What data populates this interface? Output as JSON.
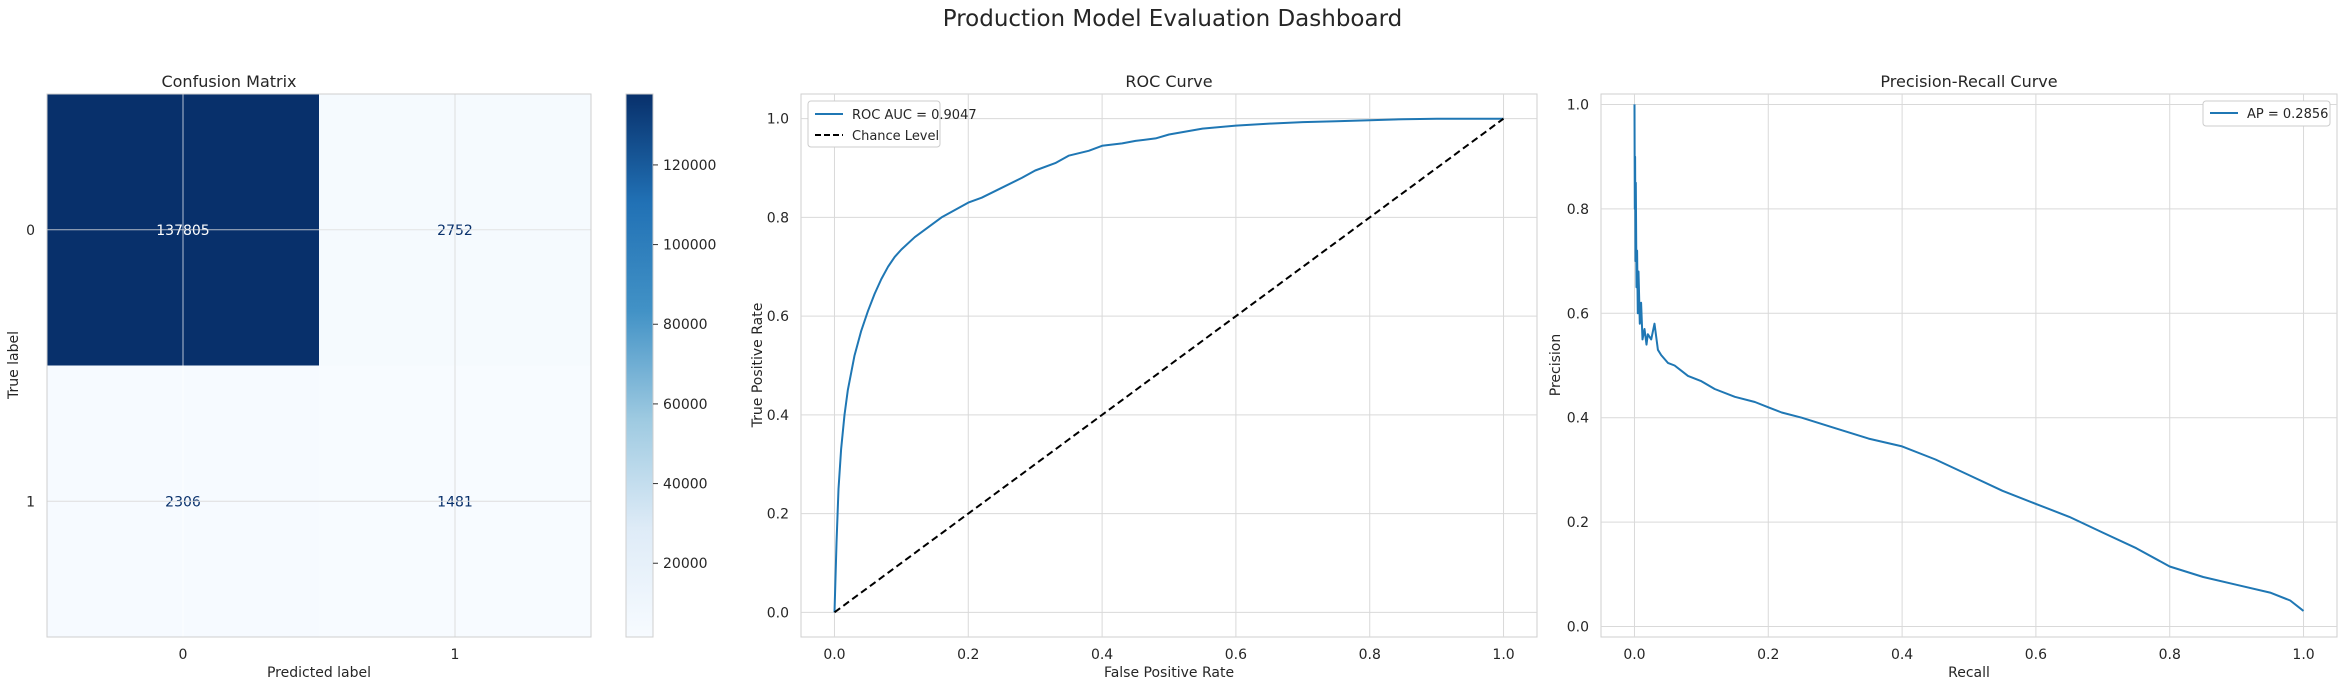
{
  "suptitle": "Production Model Evaluation Dashboard",
  "colors": {
    "line_blue": "#1f77b4",
    "chance_black": "#000000",
    "grid": "#d9d9d9",
    "cm_dark": "#08306b",
    "cm_light": "#f7fbff"
  },
  "chart_data": [
    {
      "type": "heatmap",
      "title": "Confusion Matrix",
      "xlabel": "Predicted label",
      "ylabel": "True label",
      "x_ticks": [
        "0",
        "1"
      ],
      "y_ticks": [
        "0",
        "1"
      ],
      "matrix": [
        [
          137805,
          2752
        ],
        [
          2306,
          1481
        ]
      ],
      "cell_labels": [
        [
          "137805",
          "2752"
        ],
        [
          "2306",
          "1481"
        ]
      ],
      "colorbar": {
        "ticks": [
          "20000",
          "40000",
          "60000",
          "80000",
          "100000",
          "120000"
        ],
        "range": [
          1481,
          137805
        ]
      }
    },
    {
      "type": "line",
      "title": "ROC Curve",
      "xlabel": "False Positive Rate",
      "ylabel": "True Positive Rate",
      "xlim": [
        -0.05,
        1.05
      ],
      "ylim": [
        -0.05,
        1.05
      ],
      "x_ticks": [
        "0.0",
        "0.2",
        "0.4",
        "0.6",
        "0.8",
        "1.0"
      ],
      "y_ticks": [
        "0.0",
        "0.2",
        "0.4",
        "0.6",
        "0.8",
        "1.0"
      ],
      "legend_position": "top-left",
      "grid": true,
      "series": [
        {
          "name": "ROC AUC = 0.9047",
          "style": "solid",
          "x": [
            0,
            0.003,
            0.006,
            0.01,
            0.015,
            0.02,
            0.03,
            0.04,
            0.05,
            0.06,
            0.07,
            0.08,
            0.09,
            0.1,
            0.12,
            0.14,
            0.16,
            0.18,
            0.2,
            0.22,
            0.25,
            0.28,
            0.3,
            0.33,
            0.35,
            0.38,
            0.4,
            0.43,
            0.45,
            0.48,
            0.5,
            0.55,
            0.6,
            0.65,
            0.7,
            0.75,
            0.8,
            0.85,
            0.9,
            0.95,
            1.0
          ],
          "y": [
            0,
            0.14,
            0.25,
            0.33,
            0.4,
            0.45,
            0.52,
            0.57,
            0.61,
            0.645,
            0.675,
            0.7,
            0.72,
            0.735,
            0.76,
            0.78,
            0.8,
            0.815,
            0.83,
            0.84,
            0.86,
            0.88,
            0.895,
            0.91,
            0.925,
            0.935,
            0.945,
            0.95,
            0.955,
            0.96,
            0.968,
            0.98,
            0.986,
            0.99,
            0.993,
            0.995,
            0.997,
            0.999,
            1.0,
            1.0,
            1.0
          ]
        },
        {
          "name": "Chance Level",
          "style": "dashed",
          "x": [
            0,
            1
          ],
          "y": [
            0,
            1
          ]
        }
      ]
    },
    {
      "type": "line",
      "title": "Precision-Recall Curve",
      "xlabel": "Recall",
      "ylabel": "Precision",
      "xlim": [
        -0.05,
        1.05
      ],
      "ylim": [
        -0.02,
        1.02
      ],
      "x_ticks": [
        "0.0",
        "0.2",
        "0.4",
        "0.6",
        "0.8",
        "1.0"
      ],
      "y_ticks": [
        "0.0",
        "0.2",
        "0.4",
        "0.6",
        "0.8",
        "1.0"
      ],
      "legend_position": "top-right",
      "grid": true,
      "series": [
        {
          "name": "AP = 0.2856",
          "style": "solid",
          "x": [
            0.0,
            0.0005,
            0.001,
            0.0015,
            0.002,
            0.003,
            0.004,
            0.005,
            0.006,
            0.008,
            0.01,
            0.012,
            0.015,
            0.018,
            0.02,
            0.025,
            0.03,
            0.035,
            0.04,
            0.05,
            0.06,
            0.07,
            0.08,
            0.1,
            0.12,
            0.15,
            0.18,
            0.2,
            0.22,
            0.25,
            0.3,
            0.35,
            0.4,
            0.45,
            0.5,
            0.55,
            0.6,
            0.65,
            0.7,
            0.75,
            0.8,
            0.85,
            0.9,
            0.95,
            0.98,
            1.0
          ],
          "y": [
            1.0,
            0.8,
            0.9,
            0.7,
            0.85,
            0.65,
            0.72,
            0.6,
            0.68,
            0.58,
            0.62,
            0.55,
            0.57,
            0.54,
            0.56,
            0.55,
            0.58,
            0.53,
            0.52,
            0.505,
            0.5,
            0.49,
            0.48,
            0.47,
            0.455,
            0.44,
            0.43,
            0.42,
            0.41,
            0.4,
            0.38,
            0.36,
            0.345,
            0.32,
            0.29,
            0.26,
            0.235,
            0.21,
            0.18,
            0.15,
            0.115,
            0.095,
            0.08,
            0.065,
            0.05,
            0.03
          ]
        }
      ]
    }
  ]
}
